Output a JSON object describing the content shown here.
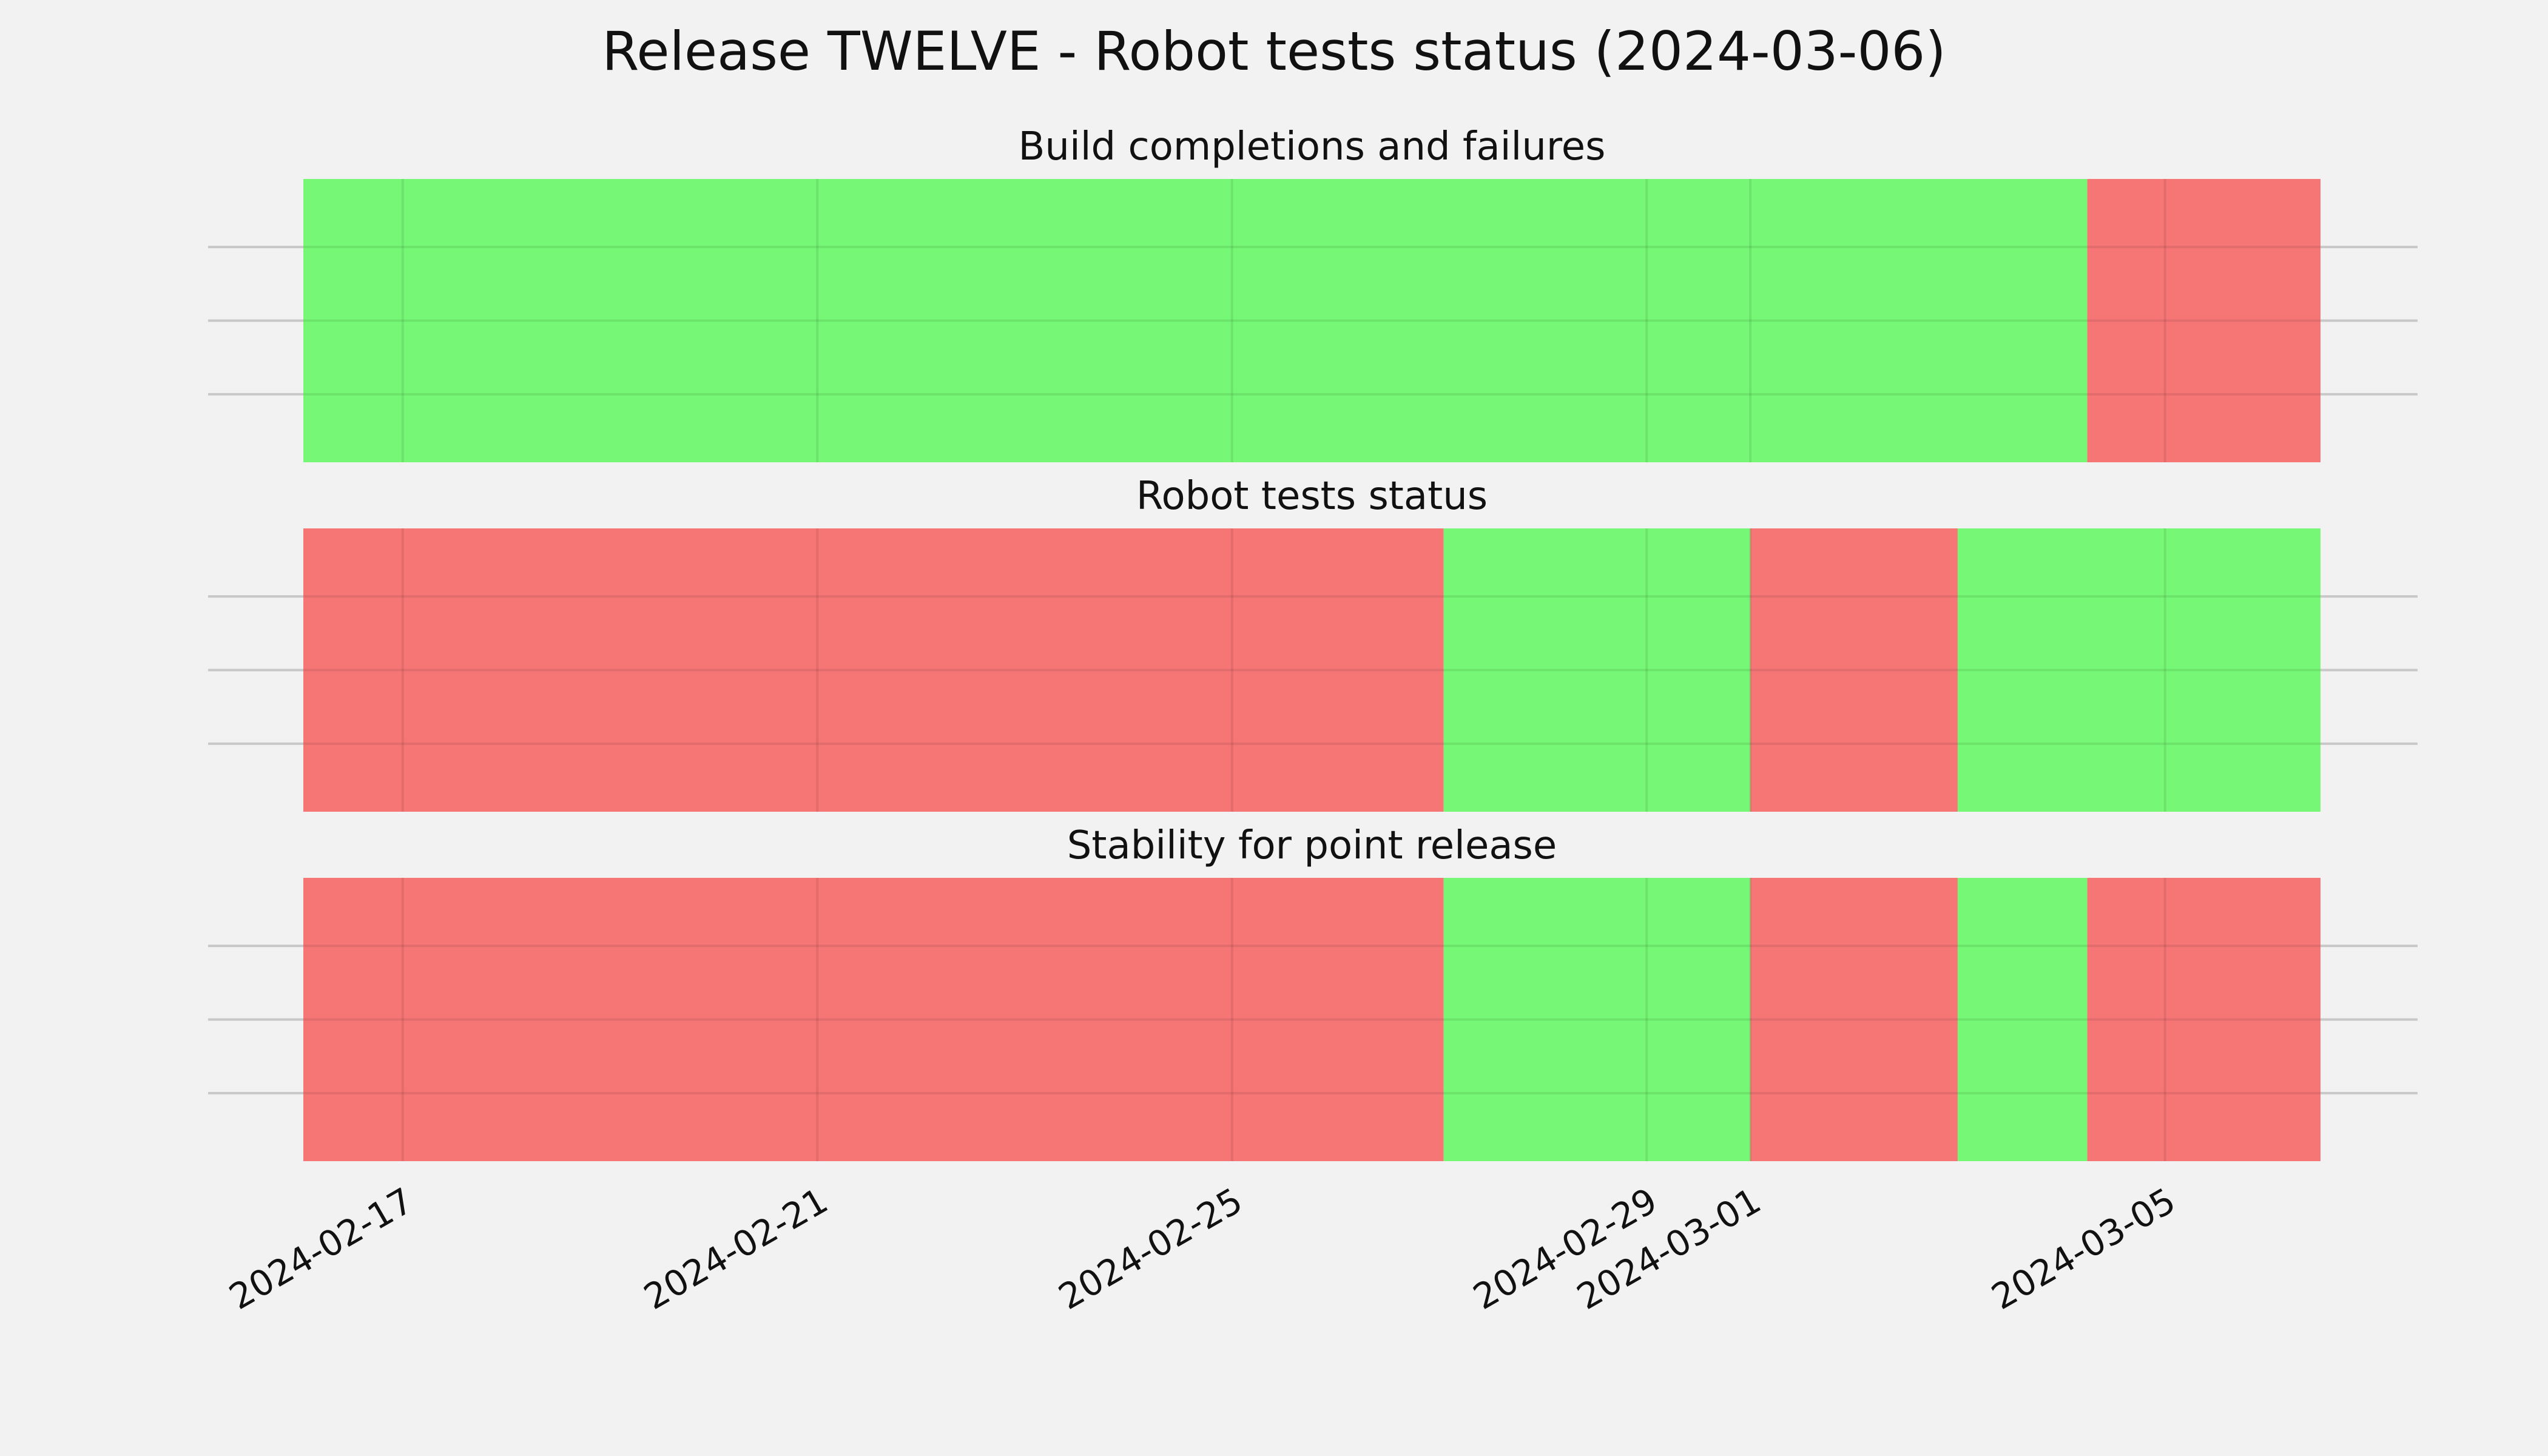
{
  "chart_data": {
    "type": "timeline",
    "title": "Release TWELVE - Robot tests status (2024-03-06)",
    "x_axis": {
      "type": "date",
      "range": [
        "2024-02-16T01:00",
        "2024-03-06T12:00"
      ],
      "ticks": [
        "2024-02-17",
        "2024-02-21",
        "2024-02-25",
        "2024-02-29",
        "2024-03-01",
        "2024-03-05"
      ]
    },
    "grid": true,
    "colors": {
      "pass": "#76f876",
      "fail": "#f67676",
      "background": "#f2f2f2"
    },
    "panels": [
      {
        "title": "Build completions and failures",
        "segments": [
          {
            "start": "2024-02-16T01:00",
            "end": "2024-03-04T06:00",
            "status": "pass"
          },
          {
            "start": "2024-03-04T06:00",
            "end": "2024-03-06T12:00",
            "status": "fail"
          }
        ]
      },
      {
        "title": "Robot tests status",
        "segments": [
          {
            "start": "2024-02-16T01:00",
            "end": "2024-02-27T01:00",
            "status": "fail"
          },
          {
            "start": "2024-02-27T01:00",
            "end": "2024-03-01T00:00",
            "status": "pass"
          },
          {
            "start": "2024-03-01T00:00",
            "end": "2024-03-03T00:00",
            "status": "fail"
          },
          {
            "start": "2024-03-03T00:00",
            "end": "2024-03-06T12:00",
            "status": "pass"
          }
        ]
      },
      {
        "title": "Stability for point release",
        "segments": [
          {
            "start": "2024-02-16T01:00",
            "end": "2024-02-27T01:00",
            "status": "fail"
          },
          {
            "start": "2024-02-27T01:00",
            "end": "2024-03-01T00:00",
            "status": "pass"
          },
          {
            "start": "2024-03-01T00:00",
            "end": "2024-03-03T00:00",
            "status": "fail"
          },
          {
            "start": "2024-03-03T00:00",
            "end": "2024-03-04T06:00",
            "status": "pass"
          },
          {
            "start": "2024-03-04T06:00",
            "end": "2024-03-06T12:00",
            "status": "fail"
          }
        ]
      }
    ]
  }
}
